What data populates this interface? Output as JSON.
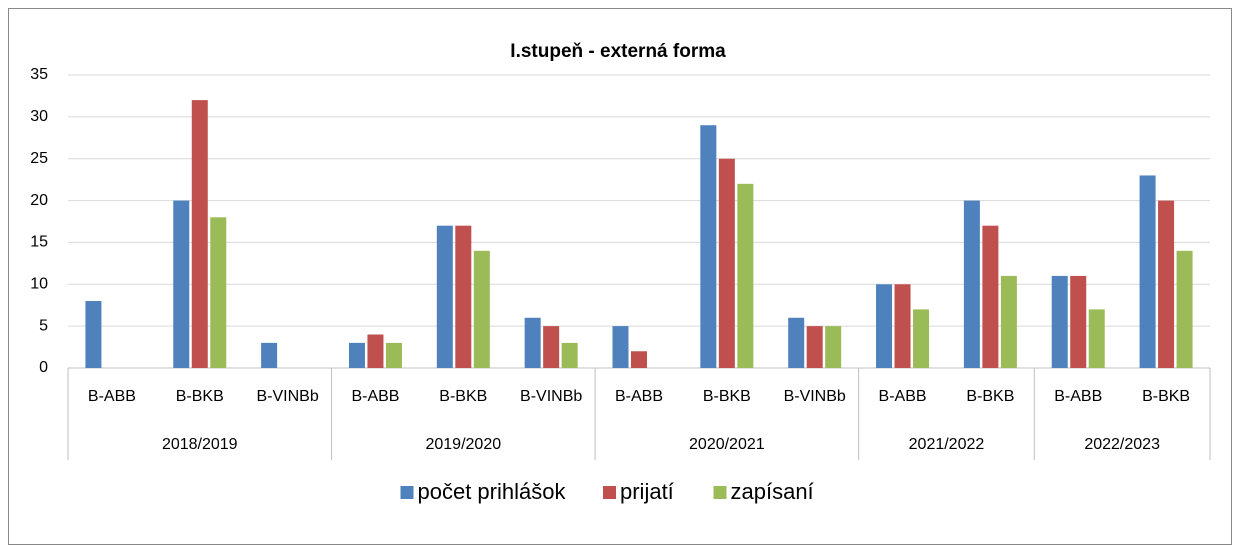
{
  "chart_data": {
    "type": "bar",
    "title": "I.stupeň - externá forma",
    "groups": [
      {
        "label": "2018/2019",
        "categories": [
          "B-ABB",
          "B-BKB",
          "B-VINBb"
        ]
      },
      {
        "label": "2019/2020",
        "categories": [
          "B-ABB",
          "B-BKB",
          "B-VINBb"
        ]
      },
      {
        "label": "2020/2021",
        "categories": [
          "B-ABB",
          "B-BKB",
          "B-VINBb"
        ]
      },
      {
        "label": "2021/2022",
        "categories": [
          "B-ABB",
          "B-BKB"
        ]
      },
      {
        "label": "2022/2023",
        "categories": [
          "B-ABB",
          "B-BKB"
        ]
      }
    ],
    "series": [
      {
        "name": "počet prihlášok",
        "color": "#4f81bd",
        "values": [
          8,
          20,
          3,
          3,
          17,
          6,
          5,
          29,
          6,
          10,
          20,
          11,
          23
        ]
      },
      {
        "name": "prijatí",
        "color": "#c0504d",
        "values": [
          0,
          32,
          0,
          4,
          17,
          5,
          2,
          25,
          5,
          10,
          17,
          11,
          20
        ]
      },
      {
        "name": "zapísaní",
        "color": "#9bbb59",
        "values": [
          0,
          18,
          0,
          3,
          14,
          3,
          0,
          22,
          5,
          7,
          11,
          7,
          14
        ]
      }
    ],
    "ylim": [
      0,
      35
    ],
    "yticks": [
      0,
      5,
      10,
      15,
      20,
      25,
      30,
      35
    ],
    "grid": true,
    "legend": "bottom"
  }
}
